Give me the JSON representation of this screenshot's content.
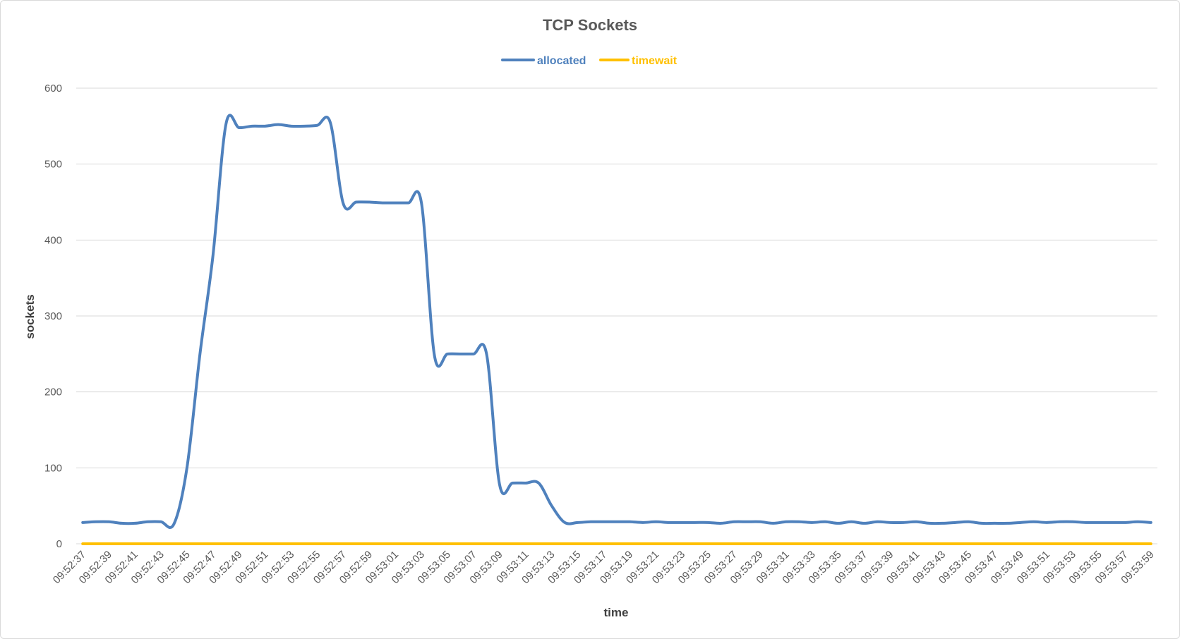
{
  "chart_data": {
    "type": "line",
    "title": "TCP Sockets",
    "xlabel": "time",
    "ylabel": "sockets",
    "ylim": [
      0,
      600
    ],
    "yticks": [
      0,
      100,
      200,
      300,
      400,
      500,
      600
    ],
    "grid": true,
    "legend_position": "top",
    "x": [
      "09:52:37",
      "09:52:38",
      "09:52:39",
      "09:52:40",
      "09:52:41",
      "09:52:42",
      "09:52:43",
      "09:52:44",
      "09:52:45",
      "09:52:46",
      "09:52:47",
      "09:52:48",
      "09:52:49",
      "09:52:50",
      "09:52:51",
      "09:52:52",
      "09:52:53",
      "09:52:54",
      "09:52:55",
      "09:52:56",
      "09:52:57",
      "09:52:58",
      "09:52:59",
      "09:53:00",
      "09:53:01",
      "09:53:02",
      "09:53:03",
      "09:53:04",
      "09:53:05",
      "09:53:06",
      "09:53:07",
      "09:53:08",
      "09:53:09",
      "09:53:10",
      "09:53:11",
      "09:53:12",
      "09:53:13",
      "09:53:14",
      "09:53:15",
      "09:53:16",
      "09:53:17",
      "09:53:18",
      "09:53:19",
      "09:53:20",
      "09:53:21",
      "09:53:22",
      "09:53:23",
      "09:53:24",
      "09:53:25",
      "09:53:26",
      "09:53:27",
      "09:53:28",
      "09:53:29",
      "09:53:30",
      "09:53:31",
      "09:53:32",
      "09:53:33",
      "09:53:34",
      "09:53:35",
      "09:53:36",
      "09:53:37",
      "09:53:38",
      "09:53:39",
      "09:53:40",
      "09:53:41",
      "09:53:42",
      "09:53:43",
      "09:53:44",
      "09:53:45",
      "09:53:46",
      "09:53:47",
      "09:53:48",
      "09:53:49",
      "09:53:50",
      "09:53:51",
      "09:53:52",
      "09:53:53",
      "09:53:54",
      "09:53:55",
      "09:53:56",
      "09:53:57",
      "09:53:58",
      "09:53:59"
    ],
    "xtick_labels": [
      "09:52:37",
      "09:52:39",
      "09:52:41",
      "09:52:43",
      "09:52:45",
      "09:52:47",
      "09:52:49",
      "09:52:51",
      "09:52:53",
      "09:52:55",
      "09:52:57",
      "09:52:59",
      "09:53:01",
      "09:53:03",
      "09:53:05",
      "09:53:07",
      "09:53:09",
      "09:53:11",
      "09:53:13",
      "09:53:15",
      "09:53:17",
      "09:53:19",
      "09:53:21",
      "09:53:23",
      "09:53:25",
      "09:53:27",
      "09:53:29",
      "09:53:31",
      "09:53:33",
      "09:53:35",
      "09:53:37",
      "09:53:39",
      "09:53:41",
      "09:53:43",
      "09:53:45",
      "09:53:47",
      "09:53:49",
      "09:53:51",
      "09:53:53",
      "09:53:55",
      "09:53:57",
      "09:53:59"
    ],
    "series": [
      {
        "name": "allocated",
        "color": "#4f81bd",
        "values": [
          28,
          29,
          29,
          27,
          27,
          29,
          29,
          26,
          100,
          250,
          380,
          553,
          548,
          550,
          550,
          552,
          550,
          550,
          551,
          555,
          448,
          450,
          450,
          449,
          449,
          449,
          449,
          248,
          250,
          250,
          250,
          250,
          78,
          80,
          80,
          80,
          50,
          28,
          28,
          29,
          29,
          29,
          29,
          28,
          29,
          28,
          28,
          28,
          28,
          27,
          29,
          29,
          29,
          27,
          29,
          29,
          28,
          29,
          27,
          29,
          27,
          29,
          28,
          28,
          29,
          27,
          27,
          28,
          29,
          27,
          27,
          27,
          28,
          29,
          28,
          29,
          29,
          28,
          28,
          28,
          28,
          29,
          28
        ]
      },
      {
        "name": "timewait",
        "color": "#ffc000",
        "values": [
          0,
          0,
          0,
          0,
          0,
          0,
          0,
          0,
          0,
          0,
          0,
          0,
          0,
          0,
          0,
          0,
          0,
          0,
          0,
          0,
          0,
          0,
          0,
          0,
          0,
          0,
          0,
          0,
          0,
          0,
          0,
          0,
          0,
          0,
          0,
          0,
          0,
          0,
          0,
          0,
          0,
          0,
          0,
          0,
          0,
          0,
          0,
          0,
          0,
          0,
          0,
          0,
          0,
          0,
          0,
          0,
          0,
          0,
          0,
          0,
          0,
          0,
          0,
          0,
          0,
          0,
          0,
          0,
          0,
          0,
          0,
          0,
          0,
          0,
          0,
          0,
          0,
          0,
          0,
          0,
          0,
          0,
          0
        ]
      }
    ]
  }
}
